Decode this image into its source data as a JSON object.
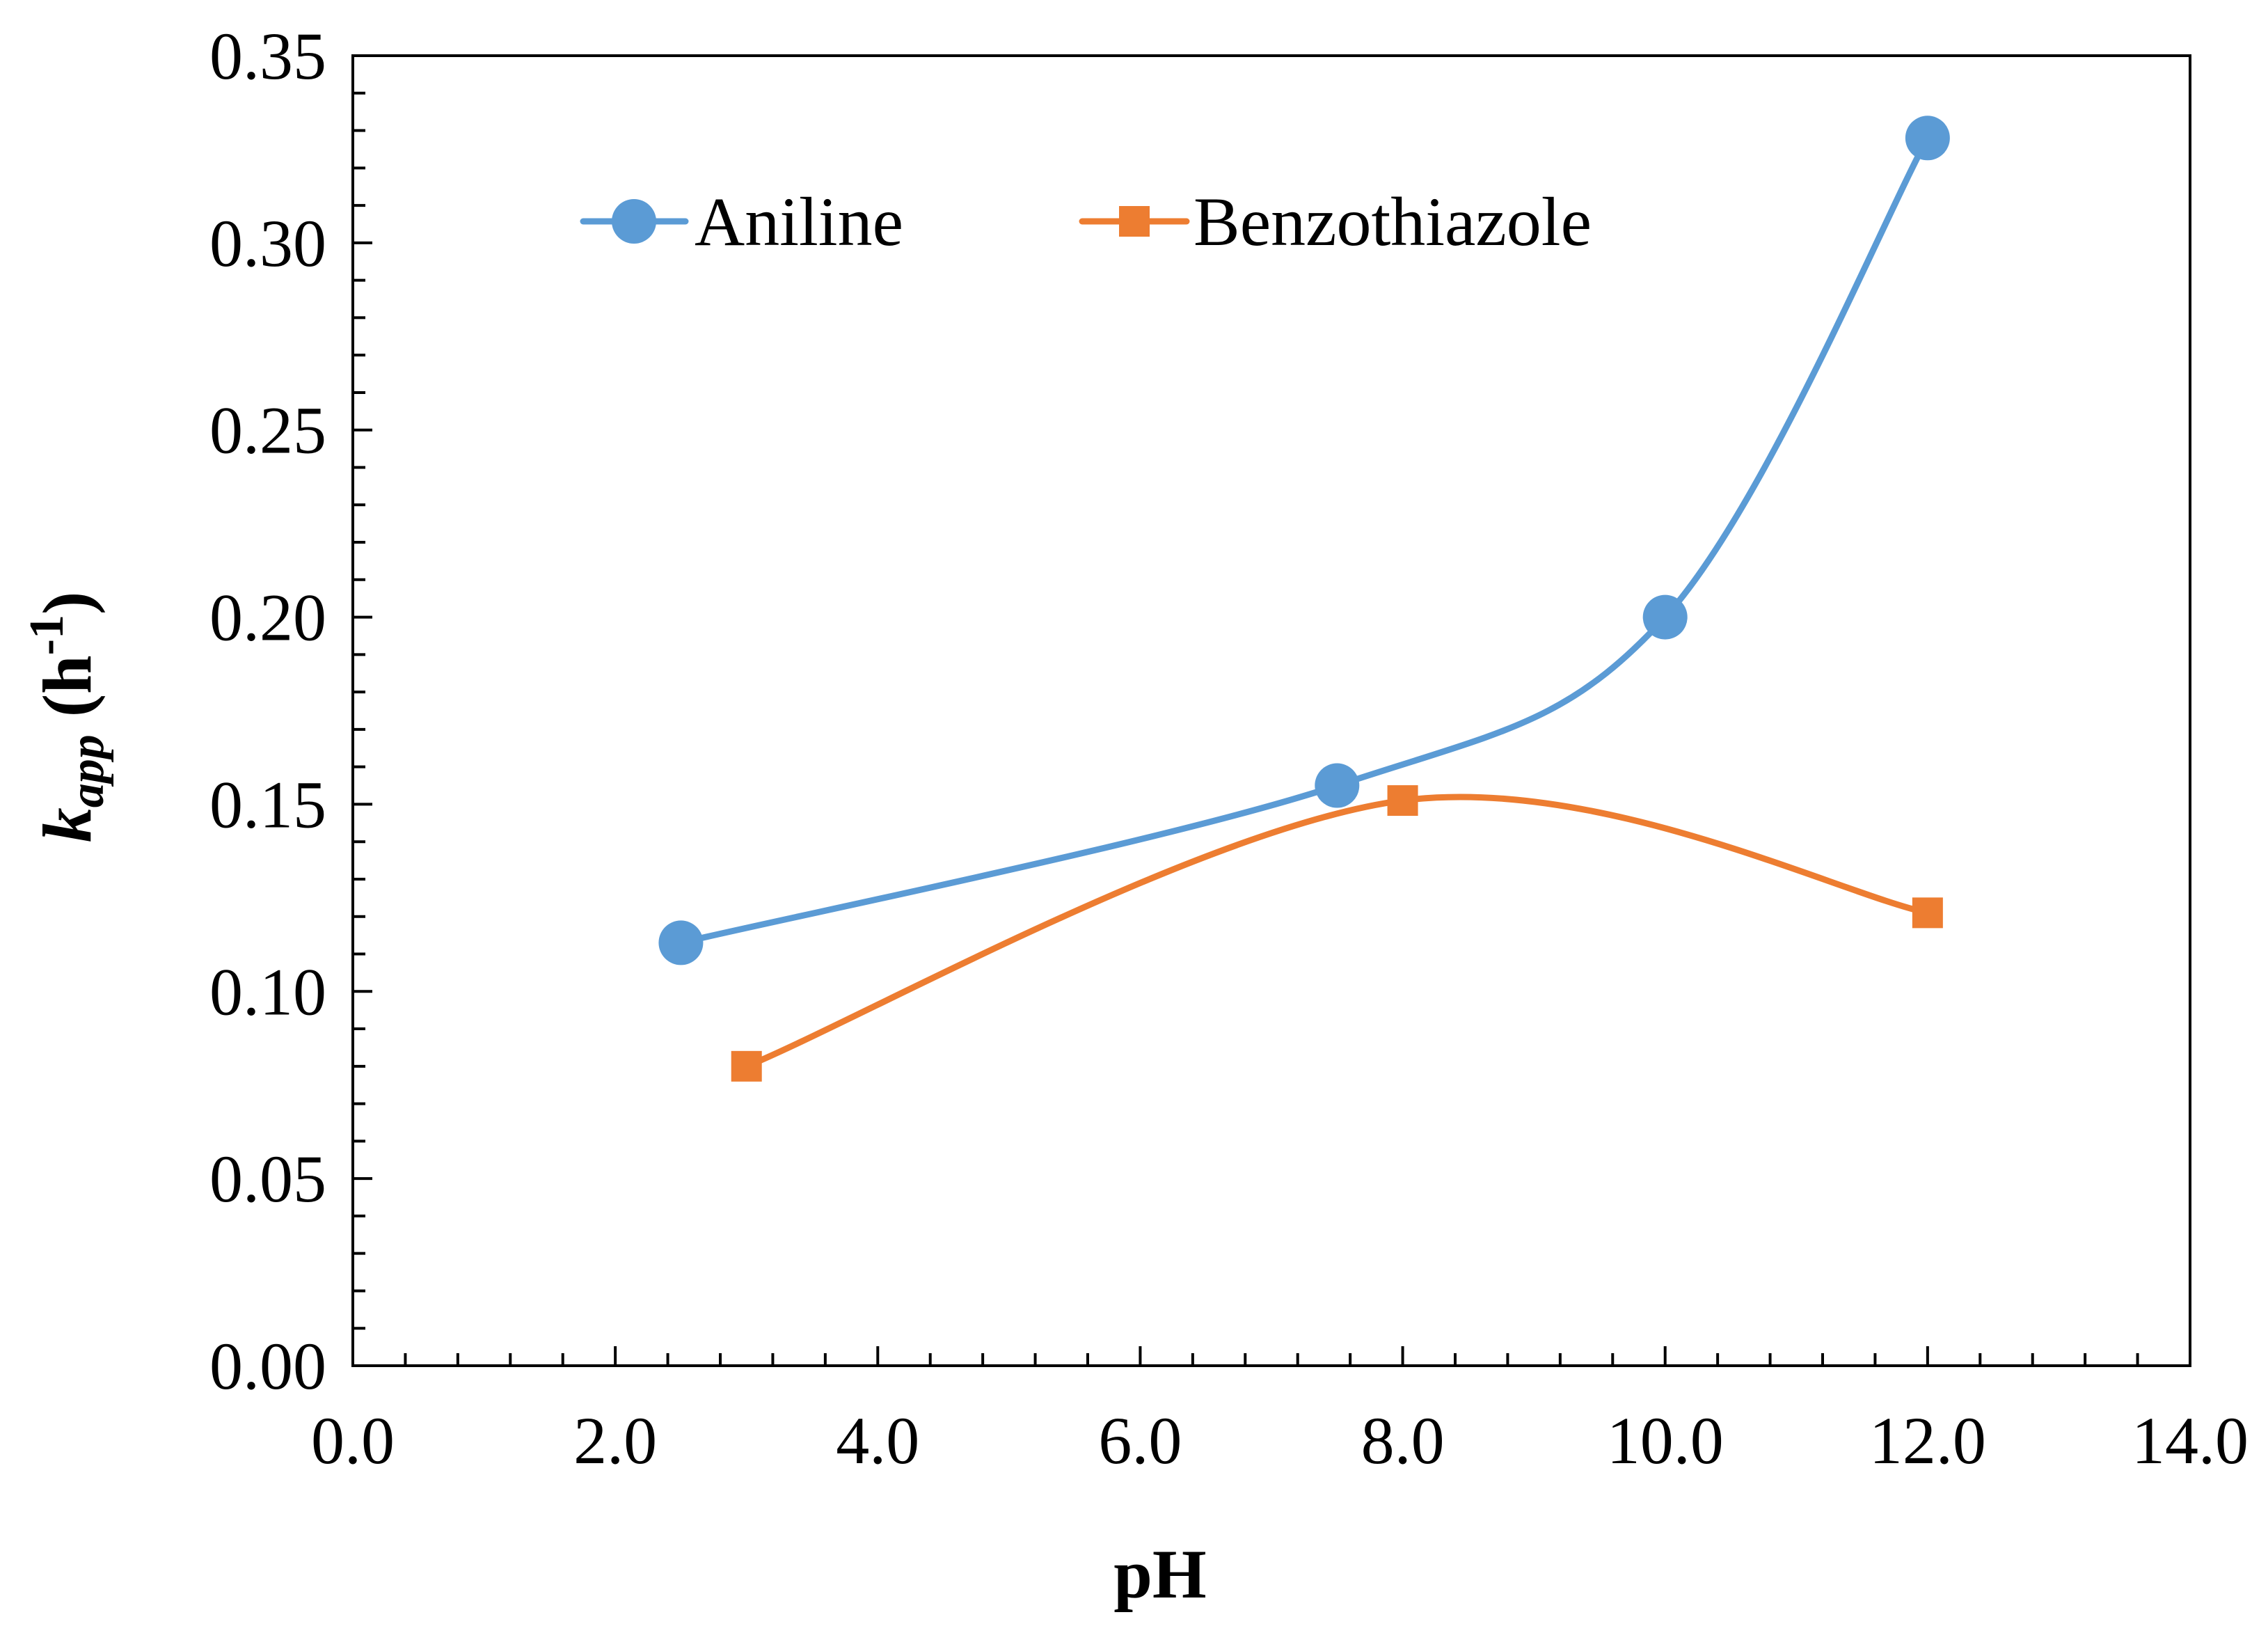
{
  "chart_data": {
    "type": "line",
    "title": "",
    "xlabel": "pH",
    "ylabel": {
      "main": "k",
      "subscript": "app",
      "unit_open": " (h",
      "unit_sup": "-1",
      "unit_close": ")"
    },
    "xlim": [
      0,
      14
    ],
    "ylim": [
      0,
      0.35
    ],
    "x_ticks": [
      0,
      2,
      4,
      6,
      8,
      10,
      12,
      14
    ],
    "x_tick_labels": [
      "0.0",
      "2.0",
      "4.0",
      "6.0",
      "8.0",
      "10.0",
      "12.0",
      "14.0"
    ],
    "x_minor_step": 0.4,
    "y_ticks": [
      0,
      0.05,
      0.1,
      0.15,
      0.2,
      0.25,
      0.3,
      0.35
    ],
    "y_tick_labels": [
      "0.00",
      "0.05",
      "0.10",
      "0.15",
      "0.20",
      "0.25",
      "0.30",
      "0.35"
    ],
    "y_minor_step": 0.01,
    "grid": false,
    "legend_position": "top-left",
    "series": [
      {
        "name": "Aniline",
        "color": "#5B9BD5",
        "marker": "circle",
        "x": [
          2.5,
          7.5,
          10.0,
          12.0
        ],
        "y": [
          0.113,
          0.155,
          0.2,
          0.328
        ]
      },
      {
        "name": "Benzothiazole",
        "color": "#ED7D31",
        "marker": "square",
        "x": [
          3.0,
          8.0,
          12.0
        ],
        "y": [
          0.08,
          0.151,
          0.121
        ]
      }
    ]
  }
}
